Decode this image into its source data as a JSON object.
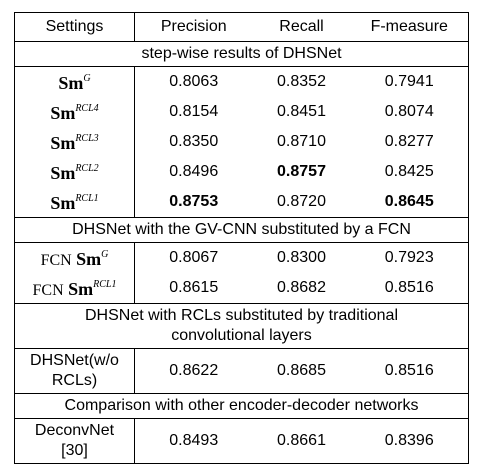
{
  "table": {
    "headers": [
      "Settings",
      "Precision",
      "Recall",
      "F-measure"
    ],
    "sections": [
      {
        "title": "step-wise results of DHSNet",
        "rows": [
          {
            "prefix": "",
            "sm": "Sm",
            "sup": "G",
            "precision": "0.8063",
            "recall": "0.8352",
            "fmeasure": "0.7941"
          },
          {
            "prefix": "",
            "sm": "Sm",
            "sup": "RCL4",
            "precision": "0.8154",
            "recall": "0.8451",
            "fmeasure": "0.8074"
          },
          {
            "prefix": "",
            "sm": "Sm",
            "sup": "RCL3",
            "precision": "0.8350",
            "recall": "0.8710",
            "fmeasure": "0.8277"
          },
          {
            "prefix": "",
            "sm": "Sm",
            "sup": "RCL2",
            "precision": "0.8496",
            "recall": "0.8757",
            "fmeasure": "0.8425"
          },
          {
            "prefix": "",
            "sm": "Sm",
            "sup": "RCL1",
            "precision": "0.8753",
            "recall": "0.8720",
            "fmeasure": "0.8645"
          }
        ]
      },
      {
        "title": "DHSNet with the GV-CNN substituted by a FCN",
        "rows": [
          {
            "prefix": "FCN",
            "sm": "Sm",
            "sup": "G",
            "precision": "0.8067",
            "recall": "0.8300",
            "fmeasure": "0.7923"
          },
          {
            "prefix": "FCN",
            "sm": "Sm",
            "sup": "RCL1",
            "precision": "0.8615",
            "recall": "0.8682",
            "fmeasure": "0.8516"
          }
        ]
      },
      {
        "title_line1": "DHSNet with RCLs substituted by traditional",
        "title_line2": "convolutional layers",
        "rows": [
          {
            "setting_line1": "DHSNet(w/o",
            "setting_line2": "RCLs)",
            "precision": "0.8622",
            "recall": "0.8685",
            "fmeasure": "0.8516"
          }
        ]
      },
      {
        "title": "Comparison with other encoder-decoder networks",
        "rows": [
          {
            "setting_line1": "DeconvNet",
            "setting_line2": "[30]",
            "precision": "0.8493",
            "recall": "0.8661",
            "fmeasure": "0.8396"
          }
        ]
      }
    ]
  }
}
